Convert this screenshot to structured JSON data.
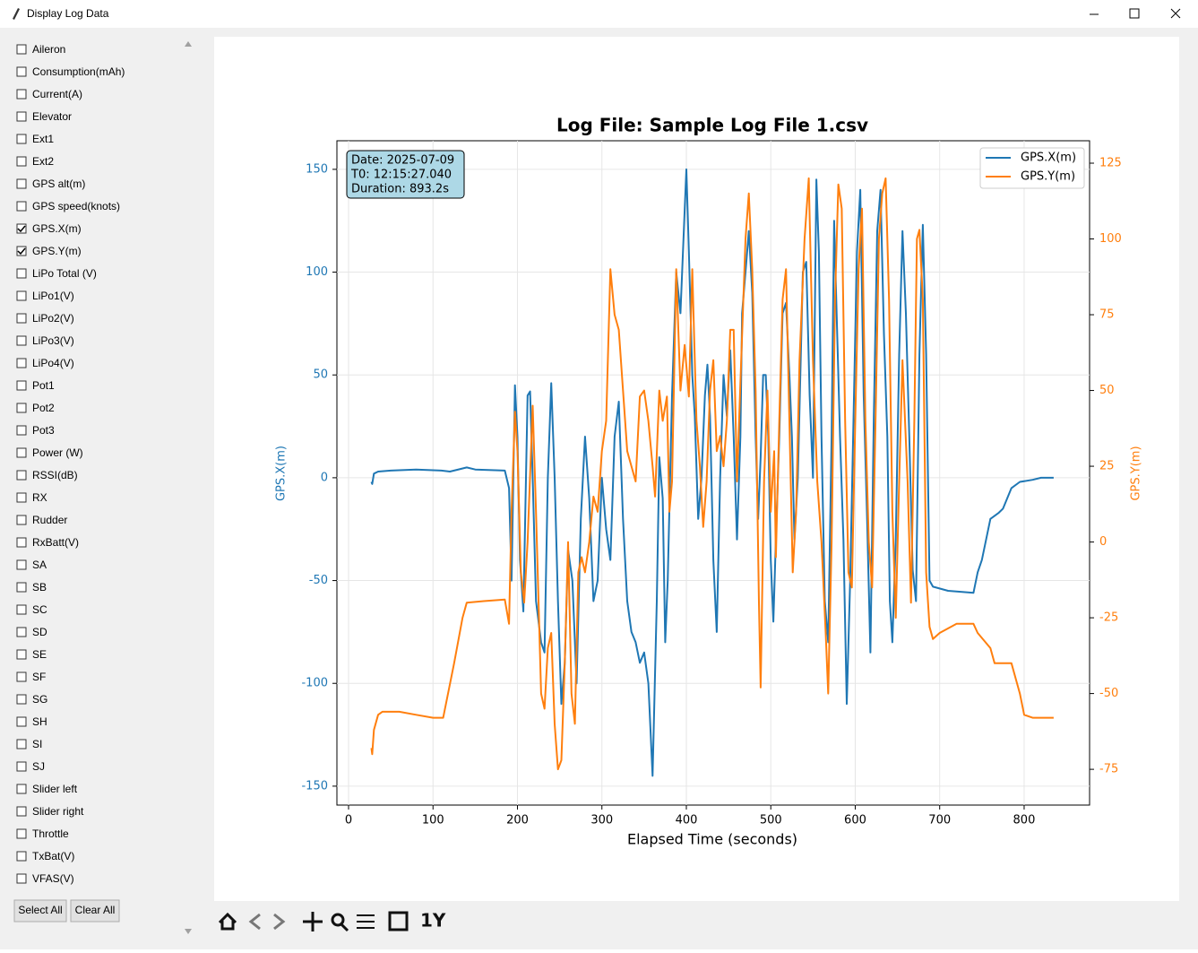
{
  "window": {
    "title": "Display Log Data"
  },
  "channels": [
    {
      "label": "Aileron",
      "checked": false
    },
    {
      "label": "Consumption(mAh)",
      "checked": false
    },
    {
      "label": "Current(A)",
      "checked": false
    },
    {
      "label": "Elevator",
      "checked": false
    },
    {
      "label": "Ext1",
      "checked": false
    },
    {
      "label": "Ext2",
      "checked": false
    },
    {
      "label": "GPS alt(m)",
      "checked": false
    },
    {
      "label": "GPS speed(knots)",
      "checked": false
    },
    {
      "label": "GPS.X(m)",
      "checked": true
    },
    {
      "label": "GPS.Y(m)",
      "checked": true
    },
    {
      "label": "LiPo Total (V)",
      "checked": false
    },
    {
      "label": "LiPo1(V)",
      "checked": false
    },
    {
      "label": "LiPo2(V)",
      "checked": false
    },
    {
      "label": "LiPo3(V)",
      "checked": false
    },
    {
      "label": "LiPo4(V)",
      "checked": false
    },
    {
      "label": "Pot1",
      "checked": false
    },
    {
      "label": "Pot2",
      "checked": false
    },
    {
      "label": "Pot3",
      "checked": false
    },
    {
      "label": "Power (W)",
      "checked": false
    },
    {
      "label": "RSSI(dB)",
      "checked": false
    },
    {
      "label": "RX",
      "checked": false
    },
    {
      "label": "Rudder",
      "checked": false
    },
    {
      "label": "RxBatt(V)",
      "checked": false
    },
    {
      "label": "SA",
      "checked": false
    },
    {
      "label": "SB",
      "checked": false
    },
    {
      "label": "SC",
      "checked": false
    },
    {
      "label": "SD",
      "checked": false
    },
    {
      "label": "SE",
      "checked": false
    },
    {
      "label": "SF",
      "checked": false
    },
    {
      "label": "SG",
      "checked": false
    },
    {
      "label": "SH",
      "checked": false
    },
    {
      "label": "SI",
      "checked": false
    },
    {
      "label": "SJ",
      "checked": false
    },
    {
      "label": "Slider left",
      "checked": false
    },
    {
      "label": "Slider right",
      "checked": false
    },
    {
      "label": "Throttle",
      "checked": false
    },
    {
      "label": "TxBat(V)",
      "checked": false
    },
    {
      "label": "VFAS(V)",
      "checked": false
    }
  ],
  "buttons": [
    "Select All",
    "Clear All"
  ],
  "toolbar": {
    "axis_toggle": "1Y"
  },
  "chart_data": {
    "type": "line",
    "title": "Log File: Sample Log File 1.csv",
    "xlabel": "Elapsed Time (seconds)",
    "ylabel": "GPS.X(m)",
    "y2label": "GPS.Y(m)",
    "annotation": [
      "Date: 2025-07-09",
      "T0: 12:15:27.040",
      "Duration: 893.2s"
    ],
    "xlim": [
      -13.8,
      877.5
    ],
    "ylim": [
      -159.2,
      163.9
    ],
    "y2lim": [
      -86.8,
      132.4
    ],
    "xticks": [
      0,
      100,
      200,
      300,
      400,
      500,
      600,
      700,
      800
    ],
    "yticks": [
      -150,
      -100,
      -50,
      0,
      50,
      100,
      150
    ],
    "y2ticks": [
      -75,
      -50,
      -25,
      0,
      25,
      50,
      75,
      100,
      125
    ],
    "grid": true,
    "legend": "upper right",
    "series": [
      {
        "name": "GPS.X(m)",
        "color": "#1f77b4",
        "x": [
          27,
          28,
          30,
          35,
          50,
          80,
          110,
          120,
          140,
          150,
          185,
          190,
          193,
          197,
          200,
          203,
          207,
          212,
          215,
          218,
          222,
          228,
          232,
          236,
          240,
          244,
          248,
          252,
          256,
          260,
          265,
          270,
          275,
          280,
          285,
          290,
          295,
          300,
          305,
          310,
          315,
          320,
          325,
          330,
          335,
          340,
          345,
          350,
          355,
          360,
          365,
          368,
          372,
          375,
          378,
          383,
          388,
          393,
          398,
          400,
          403,
          407,
          410,
          414,
          418,
          422,
          425,
          428,
          432,
          436,
          440,
          444,
          448,
          452,
          456,
          460,
          464,
          466,
          470,
          474,
          478,
          482,
          485,
          488,
          491,
          494,
          497,
          500,
          503,
          506,
          510,
          514,
          518,
          522,
          525,
          528,
          532,
          538,
          542,
          546,
          550,
          554,
          557,
          560,
          564,
          568,
          572,
          575,
          578,
          582,
          586,
          590,
          594,
          598,
          602,
          606,
          610,
          614,
          618,
          622,
          626,
          630,
          634,
          638,
          641,
          644,
          648,
          652,
          656,
          660,
          664,
          668,
          672,
          676,
          680,
          684,
          688,
          692,
          710,
          740,
          745,
          750,
          760,
          770,
          775,
          785,
          795,
          810,
          820,
          835
        ],
        "values": [
          -2,
          -3,
          2,
          3,
          3.5,
          4,
          3.5,
          3,
          5,
          4,
          3.5,
          -5,
          -50,
          45,
          20,
          -40,
          -65,
          40,
          42,
          0,
          -60,
          -80,
          -85,
          0,
          46,
          0,
          -60,
          -110,
          -90,
          -35,
          -50,
          -100,
          -20,
          20,
          -10,
          -60,
          -50,
          0,
          -25,
          -40,
          20,
          37,
          -20,
          -60,
          -75,
          -80,
          -90,
          -85,
          -100,
          -145,
          -60,
          10,
          -10,
          -80,
          -50,
          40,
          100,
          80,
          130,
          150,
          110,
          50,
          30,
          -20,
          0,
          40,
          55,
          30,
          -40,
          -75,
          0,
          50,
          30,
          62,
          20,
          -30,
          20,
          80,
          100,
          120,
          90,
          20,
          -20,
          10,
          50,
          50,
          20,
          -40,
          -70,
          -30,
          20,
          80,
          85,
          50,
          20,
          -30,
          0,
          100,
          105,
          40,
          0,
          145,
          110,
          20,
          -60,
          -80,
          20,
          125,
          80,
          20,
          -30,
          -110,
          -50,
          30,
          110,
          140,
          40,
          -20,
          -85,
          30,
          120,
          140,
          70,
          20,
          -60,
          -80,
          -30,
          60,
          120,
          80,
          20,
          -45,
          -60,
          60,
          123,
          60,
          -50,
          -53,
          -55,
          -56,
          -46,
          -40,
          -20,
          -17,
          -15,
          -5,
          -2,
          -1,
          0,
          0
        ]
      },
      {
        "name": "GPS.Y(m)",
        "color": "#ff7f0e",
        "axis": "y2",
        "x": [
          27,
          28,
          30,
          35,
          40,
          60,
          80,
          100,
          112,
          125,
          135,
          140,
          160,
          185,
          190,
          193,
          197,
          200,
          204,
          208,
          212,
          218,
          222,
          228,
          232,
          236,
          240,
          244,
          248,
          252,
          256,
          260,
          264,
          268,
          272,
          276,
          280,
          285,
          290,
          295,
          300,
          305,
          310,
          315,
          320,
          325,
          330,
          335,
          340,
          345,
          350,
          355,
          360,
          363,
          368,
          372,
          377,
          380,
          383,
          388,
          393,
          398,
          403,
          407,
          412,
          416,
          420,
          424,
          428,
          432,
          436,
          440,
          444,
          448,
          452,
          456,
          460,
          465,
          470,
          474,
          478,
          482,
          486,
          488,
          492,
          496,
          500,
          504,
          506,
          510,
          514,
          518,
          522,
          526,
          530,
          534,
          540,
          545,
          550,
          555,
          560,
          565,
          568,
          572,
          576,
          580,
          584,
          588,
          592,
          596,
          600,
          604,
          608,
          612,
          616,
          620,
          624,
          628,
          632,
          636,
          640,
          644,
          648,
          652,
          656,
          662,
          666,
          670,
          673,
          676,
          680,
          684,
          688,
          692,
          700,
          720,
          740,
          745,
          760,
          765,
          785,
          795,
          800,
          810,
          835
        ],
        "values": [
          -68,
          -70,
          -62,
          -57,
          -56,
          -56,
          -57,
          -58,
          -58,
          -40,
          -25,
          -20,
          -19.5,
          -19,
          -27,
          10,
          43,
          30,
          -10,
          -20,
          0,
          45,
          10,
          -50,
          -55,
          -35,
          -30,
          -60,
          -75,
          -72,
          -40,
          0,
          -50,
          -60,
          -10,
          -5,
          -10,
          0,
          15,
          10,
          30,
          40,
          90,
          75,
          70,
          50,
          30,
          25,
          20,
          48,
          50,
          40,
          25,
          15,
          50,
          40,
          48,
          10,
          20,
          90,
          50,
          65,
          48,
          90,
          40,
          25,
          5,
          20,
          50,
          60,
          30,
          35,
          25,
          40,
          70,
          70,
          20,
          60,
          100,
          115,
          90,
          50,
          -20,
          -48,
          20,
          50,
          10,
          30,
          -5,
          40,
          80,
          90,
          40,
          -10,
          10,
          60,
          100,
          120,
          60,
          20,
          0,
          -30,
          -50,
          0,
          80,
          118,
          110,
          40,
          -10,
          -15,
          40,
          90,
          110,
          40,
          0,
          -15,
          40,
          100,
          115,
          120,
          80,
          10,
          -25,
          20,
          60,
          20,
          -20,
          40,
          100,
          103,
          80,
          -10,
          -28,
          -32,
          -30,
          -27,
          -27,
          -30,
          -35,
          -40,
          -40,
          -50,
          -57,
          -58,
          -58
        ]
      }
    ]
  }
}
